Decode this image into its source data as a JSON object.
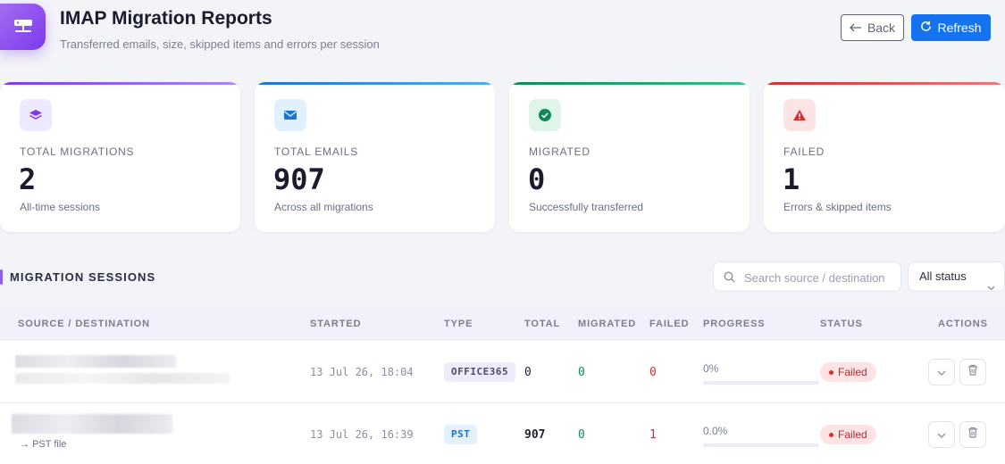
{
  "header": {
    "title": "IMAP Migration Reports",
    "subtitle": "Transferred emails, size, skipped items and errors per session",
    "back_label": "Back",
    "refresh_label": "Refresh",
    "app_icon": "server-icon"
  },
  "stats": [
    {
      "label": "TOTAL MIGRATIONS",
      "value": "2",
      "hint": "All-time sessions",
      "icon": "layers-icon",
      "accent": "#8b5cf6",
      "icon_bg": "#ede9fe",
      "icon_color": "#7c3aed"
    },
    {
      "label": "TOTAL EMAILS",
      "value": "907",
      "hint": "Across all migrations",
      "icon": "envelope-icon",
      "accent": "#1e88e5",
      "icon_bg": "#e0f0fc",
      "icon_color": "#1976d2"
    },
    {
      "label": "MIGRATED",
      "value": "0",
      "hint": "Successfully transferred",
      "icon": "check-circle-icon",
      "accent": "#129a63",
      "icon_bg": "#dff5ea",
      "icon_color": "#0f8a57"
    },
    {
      "label": "FAILED",
      "value": "1",
      "hint": "Errors & skipped items",
      "icon": "warning-icon",
      "accent": "#d84545",
      "icon_bg": "#fde4e4",
      "icon_color": "#d32f2f"
    }
  ],
  "sessions": {
    "title": "MIGRATION SESSIONS",
    "search_placeholder": "Search source / destination",
    "status_filter": "All status",
    "columns": [
      "SOURCE / DESTINATION",
      "STARTED",
      "TYPE",
      "TOTAL",
      "MIGRATED",
      "FAILED",
      "PROGRESS",
      "STATUS",
      "ACTIONS"
    ],
    "rows": [
      {
        "started": "13 Jul 26, 18:04",
        "type": "OFFICE365",
        "type_color": "#4a4e63",
        "type_bg": "#eeecfb",
        "total": "0",
        "migrated": "0",
        "failed": "0",
        "progress_text": "0%",
        "progress": 0,
        "status": "Failed",
        "tag": ""
      },
      {
        "started": "13 Jul 26, 16:39",
        "type": "PST",
        "type_color": "#1f6fc2",
        "type_bg": "#e2f1fd",
        "total": "907",
        "migrated": "0",
        "failed": "1",
        "progress_text": "0.0%",
        "progress": 0,
        "status": "Failed",
        "tag": "PST file"
      }
    ]
  }
}
